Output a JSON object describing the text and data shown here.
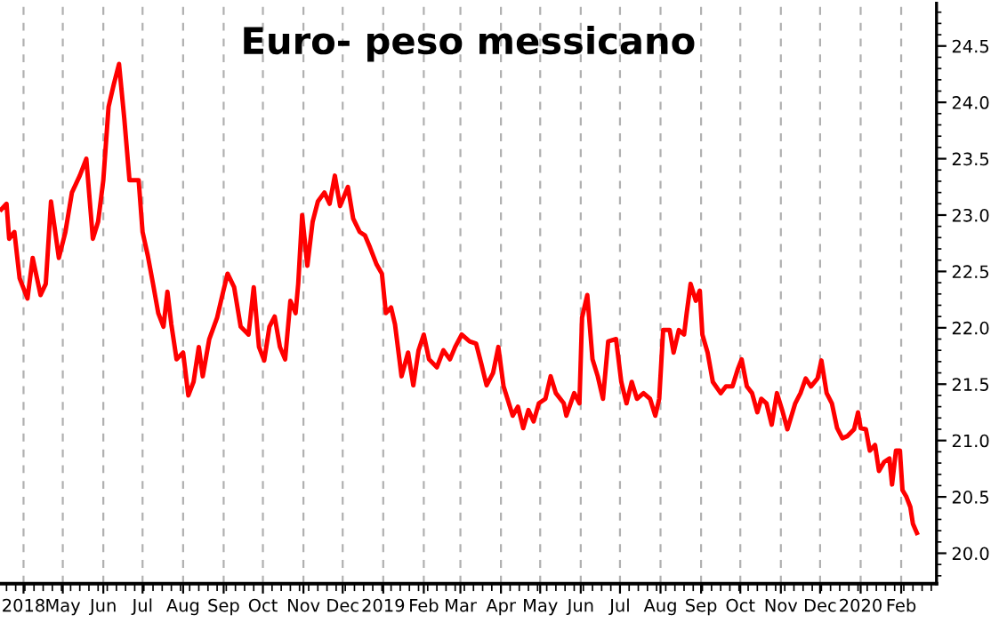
{
  "chart_data": {
    "type": "line",
    "title": "Euro- peso messicano",
    "x": [
      "2018-03-15",
      "2018-03-19",
      "2018-03-21",
      "2018-03-25",
      "2018-03-29",
      "2018-04-04",
      "2018-04-08",
      "2018-04-14",
      "2018-04-18",
      "2018-04-22",
      "2018-04-28",
      "2018-05-03",
      "2018-05-08",
      "2018-05-14",
      "2018-05-19",
      "2018-05-24",
      "2018-05-28",
      "2018-06-01",
      "2018-06-05",
      "2018-06-09",
      "2018-06-13",
      "2018-06-17",
      "2018-06-21",
      "2018-06-28",
      "2018-07-01",
      "2018-07-05",
      "2018-07-09",
      "2018-07-13",
      "2018-07-17",
      "2018-07-20",
      "2018-07-23",
      "2018-07-27",
      "2018-08-01",
      "2018-08-05",
      "2018-08-09",
      "2018-08-13",
      "2018-08-16",
      "2018-08-21",
      "2018-08-27",
      "2018-08-31",
      "2018-09-04",
      "2018-09-09",
      "2018-09-14",
      "2018-09-20",
      "2018-09-24",
      "2018-09-28",
      "2018-10-02",
      "2018-10-06",
      "2018-10-10",
      "2018-10-14",
      "2018-10-18",
      "2018-10-22",
      "2018-10-26",
      "2018-10-28",
      "2018-10-31",
      "2018-11-04",
      "2018-11-08",
      "2018-11-12",
      "2018-11-17",
      "2018-11-21",
      "2018-11-25",
      "2018-11-29",
      "2018-12-05",
      "2018-12-09",
      "2018-12-14",
      "2018-12-18",
      "2018-12-22",
      "2018-12-27",
      "2018-12-31",
      "2019-01-03",
      "2019-01-07",
      "2019-01-10",
      "2019-01-15",
      "2019-01-20",
      "2019-01-24",
      "2019-01-28",
      "2019-02-01",
      "2019-02-05",
      "2019-02-11",
      "2019-02-16",
      "2019-02-21",
      "2019-02-25",
      "2019-03-02",
      "2019-03-08",
      "2019-03-13",
      "2019-03-17",
      "2019-03-21",
      "2019-03-26",
      "2019-03-30",
      "2019-04-03",
      "2019-04-06",
      "2019-04-10",
      "2019-04-14",
      "2019-04-18",
      "2019-04-22",
      "2019-04-26",
      "2019-04-30",
      "2019-05-05",
      "2019-05-09",
      "2019-05-13",
      "2019-05-19",
      "2019-05-21",
      "2019-05-27",
      "2019-05-31",
      "2019-06-02",
      "2019-06-06",
      "2019-06-10",
      "2019-06-14",
      "2019-06-18",
      "2019-06-22",
      "2019-06-28",
      "2019-07-02",
      "2019-07-06",
      "2019-07-10",
      "2019-07-14",
      "2019-07-19",
      "2019-07-24",
      "2019-07-28",
      "2019-07-31",
      "2019-08-03",
      "2019-08-08",
      "2019-08-11",
      "2019-08-15",
      "2019-08-19",
      "2019-08-21",
      "2019-08-24",
      "2019-08-28",
      "2019-08-31",
      "2019-09-02",
      "2019-09-06",
      "2019-09-10",
      "2019-09-16",
      "2019-09-20",
      "2019-09-25",
      "2019-09-29",
      "2019-10-02",
      "2019-10-06",
      "2019-10-10",
      "2019-10-14",
      "2019-10-17",
      "2019-10-21",
      "2019-10-25",
      "2019-10-29",
      "2019-11-02",
      "2019-11-06",
      "2019-11-12",
      "2019-11-16",
      "2019-11-20",
      "2019-11-24",
      "2019-11-29",
      "2019-12-02",
      "2019-12-06",
      "2019-12-10",
      "2019-12-14",
      "2019-12-18",
      "2019-12-22",
      "2019-12-27",
      "2019-12-30",
      "2020-01-01",
      "2020-01-05",
      "2020-01-08",
      "2020-01-12",
      "2020-01-15",
      "2020-01-19",
      "2020-01-23",
      "2020-01-25",
      "2020-01-28",
      "2020-01-31",
      "2020-02-02",
      "2020-02-05",
      "2020-02-08",
      "2020-02-10",
      "2020-02-13"
    ],
    "series": [
      {
        "color": "#ff0000",
        "values": [
          23.05,
          23.1,
          22.79,
          22.85,
          22.44,
          22.26,
          22.62,
          22.29,
          22.39,
          23.12,
          22.62,
          22.85,
          23.2,
          23.35,
          23.5,
          22.79,
          22.94,
          23.31,
          23.96,
          24.16,
          24.34,
          23.86,
          23.31,
          23.31,
          22.85,
          22.64,
          22.39,
          22.13,
          22.01,
          22.32,
          22.03,
          21.72,
          21.78,
          21.4,
          21.52,
          21.83,
          21.57,
          21.9,
          22.09,
          22.29,
          22.48,
          22.36,
          22.01,
          21.94,
          22.36,
          21.83,
          21.71,
          22.01,
          22.1,
          21.83,
          21.72,
          22.24,
          22.13,
          22.39,
          23.0,
          22.55,
          22.94,
          23.12,
          23.2,
          23.1,
          23.35,
          23.08,
          23.25,
          22.97,
          22.85,
          22.82,
          22.71,
          22.56,
          22.48,
          22.13,
          22.18,
          22.03,
          21.57,
          21.78,
          21.49,
          21.8,
          21.94,
          21.72,
          21.65,
          21.8,
          21.72,
          21.83,
          21.94,
          21.88,
          21.86,
          21.68,
          21.49,
          21.6,
          21.83,
          21.48,
          21.37,
          21.22,
          21.3,
          21.11,
          21.27,
          21.17,
          21.33,
          21.37,
          21.57,
          21.42,
          21.33,
          21.22,
          21.42,
          21.33,
          22.09,
          22.29,
          21.72,
          21.57,
          21.37,
          21.88,
          21.9,
          21.52,
          21.33,
          21.52,
          21.37,
          21.42,
          21.37,
          21.22,
          21.37,
          21.98,
          21.98,
          21.78,
          21.98,
          21.94,
          22.13,
          22.39,
          22.24,
          22.33,
          21.94,
          21.78,
          21.52,
          21.42,
          21.48,
          21.48,
          21.63,
          21.72,
          21.48,
          21.42,
          21.25,
          21.37,
          21.33,
          21.14,
          21.42,
          21.27,
          21.1,
          21.33,
          21.42,
          21.55,
          21.48,
          21.55,
          21.71,
          21.42,
          21.33,
          21.11,
          21.02,
          21.04,
          21.1,
          21.25,
          21.11,
          21.1,
          20.91,
          20.96,
          20.73,
          20.81,
          20.84,
          20.61,
          20.91,
          20.91,
          20.56,
          20.5,
          20.41,
          20.26,
          20.18
        ]
      }
    ],
    "xlim": [
      "2018-03-14",
      "2020-02-28"
    ],
    "xticks": [
      {
        "value": "2018-04-01",
        "label": "2018"
      },
      {
        "value": "2018-05-01",
        "label": "May"
      },
      {
        "value": "2018-06-01",
        "label": "Jun"
      },
      {
        "value": "2018-07-01",
        "label": "Jul"
      },
      {
        "value": "2018-08-01",
        "label": "Aug"
      },
      {
        "value": "2018-09-01",
        "label": "Sep"
      },
      {
        "value": "2018-10-01",
        "label": "Oct"
      },
      {
        "value": "2018-11-01",
        "label": "Nov"
      },
      {
        "value": "2018-12-01",
        "label": "Dec"
      },
      {
        "value": "2019-01-01",
        "label": "2019"
      },
      {
        "value": "2019-02-01",
        "label": "Feb"
      },
      {
        "value": "2019-03-01",
        "label": "Mar"
      },
      {
        "value": "2019-04-01",
        "label": "Apr"
      },
      {
        "value": "2019-05-01",
        "label": "May"
      },
      {
        "value": "2019-06-01",
        "label": "Jun"
      },
      {
        "value": "2019-07-01",
        "label": "Jul"
      },
      {
        "value": "2019-08-01",
        "label": "Aug"
      },
      {
        "value": "2019-09-01",
        "label": "Sep"
      },
      {
        "value": "2019-10-01",
        "label": "Oct"
      },
      {
        "value": "2019-11-01",
        "label": "Nov"
      },
      {
        "value": "2019-12-01",
        "label": "Dec"
      },
      {
        "value": "2020-01-01",
        "label": "2020"
      },
      {
        "value": "2020-02-01",
        "label": "Feb"
      }
    ],
    "ylim": [
      19.73,
      24.88
    ],
    "yticks": [
      {
        "value": 20,
        "label": "20.0"
      },
      {
        "value": 20.5,
        "label": "20.5"
      },
      {
        "value": 21,
        "label": "21.0"
      },
      {
        "value": 21.5,
        "label": "21.5"
      },
      {
        "value": 22,
        "label": "22.0"
      },
      {
        "value": 22.5,
        "label": "22.5"
      },
      {
        "value": 23,
        "label": "23.0"
      },
      {
        "value": 23.5,
        "label": "23.5"
      },
      {
        "value": 24,
        "label": "24.0"
      },
      {
        "value": 24.5,
        "label": "24.5"
      }
    ],
    "grid": "x",
    "marker": "none",
    "line_style": "solid"
  }
}
